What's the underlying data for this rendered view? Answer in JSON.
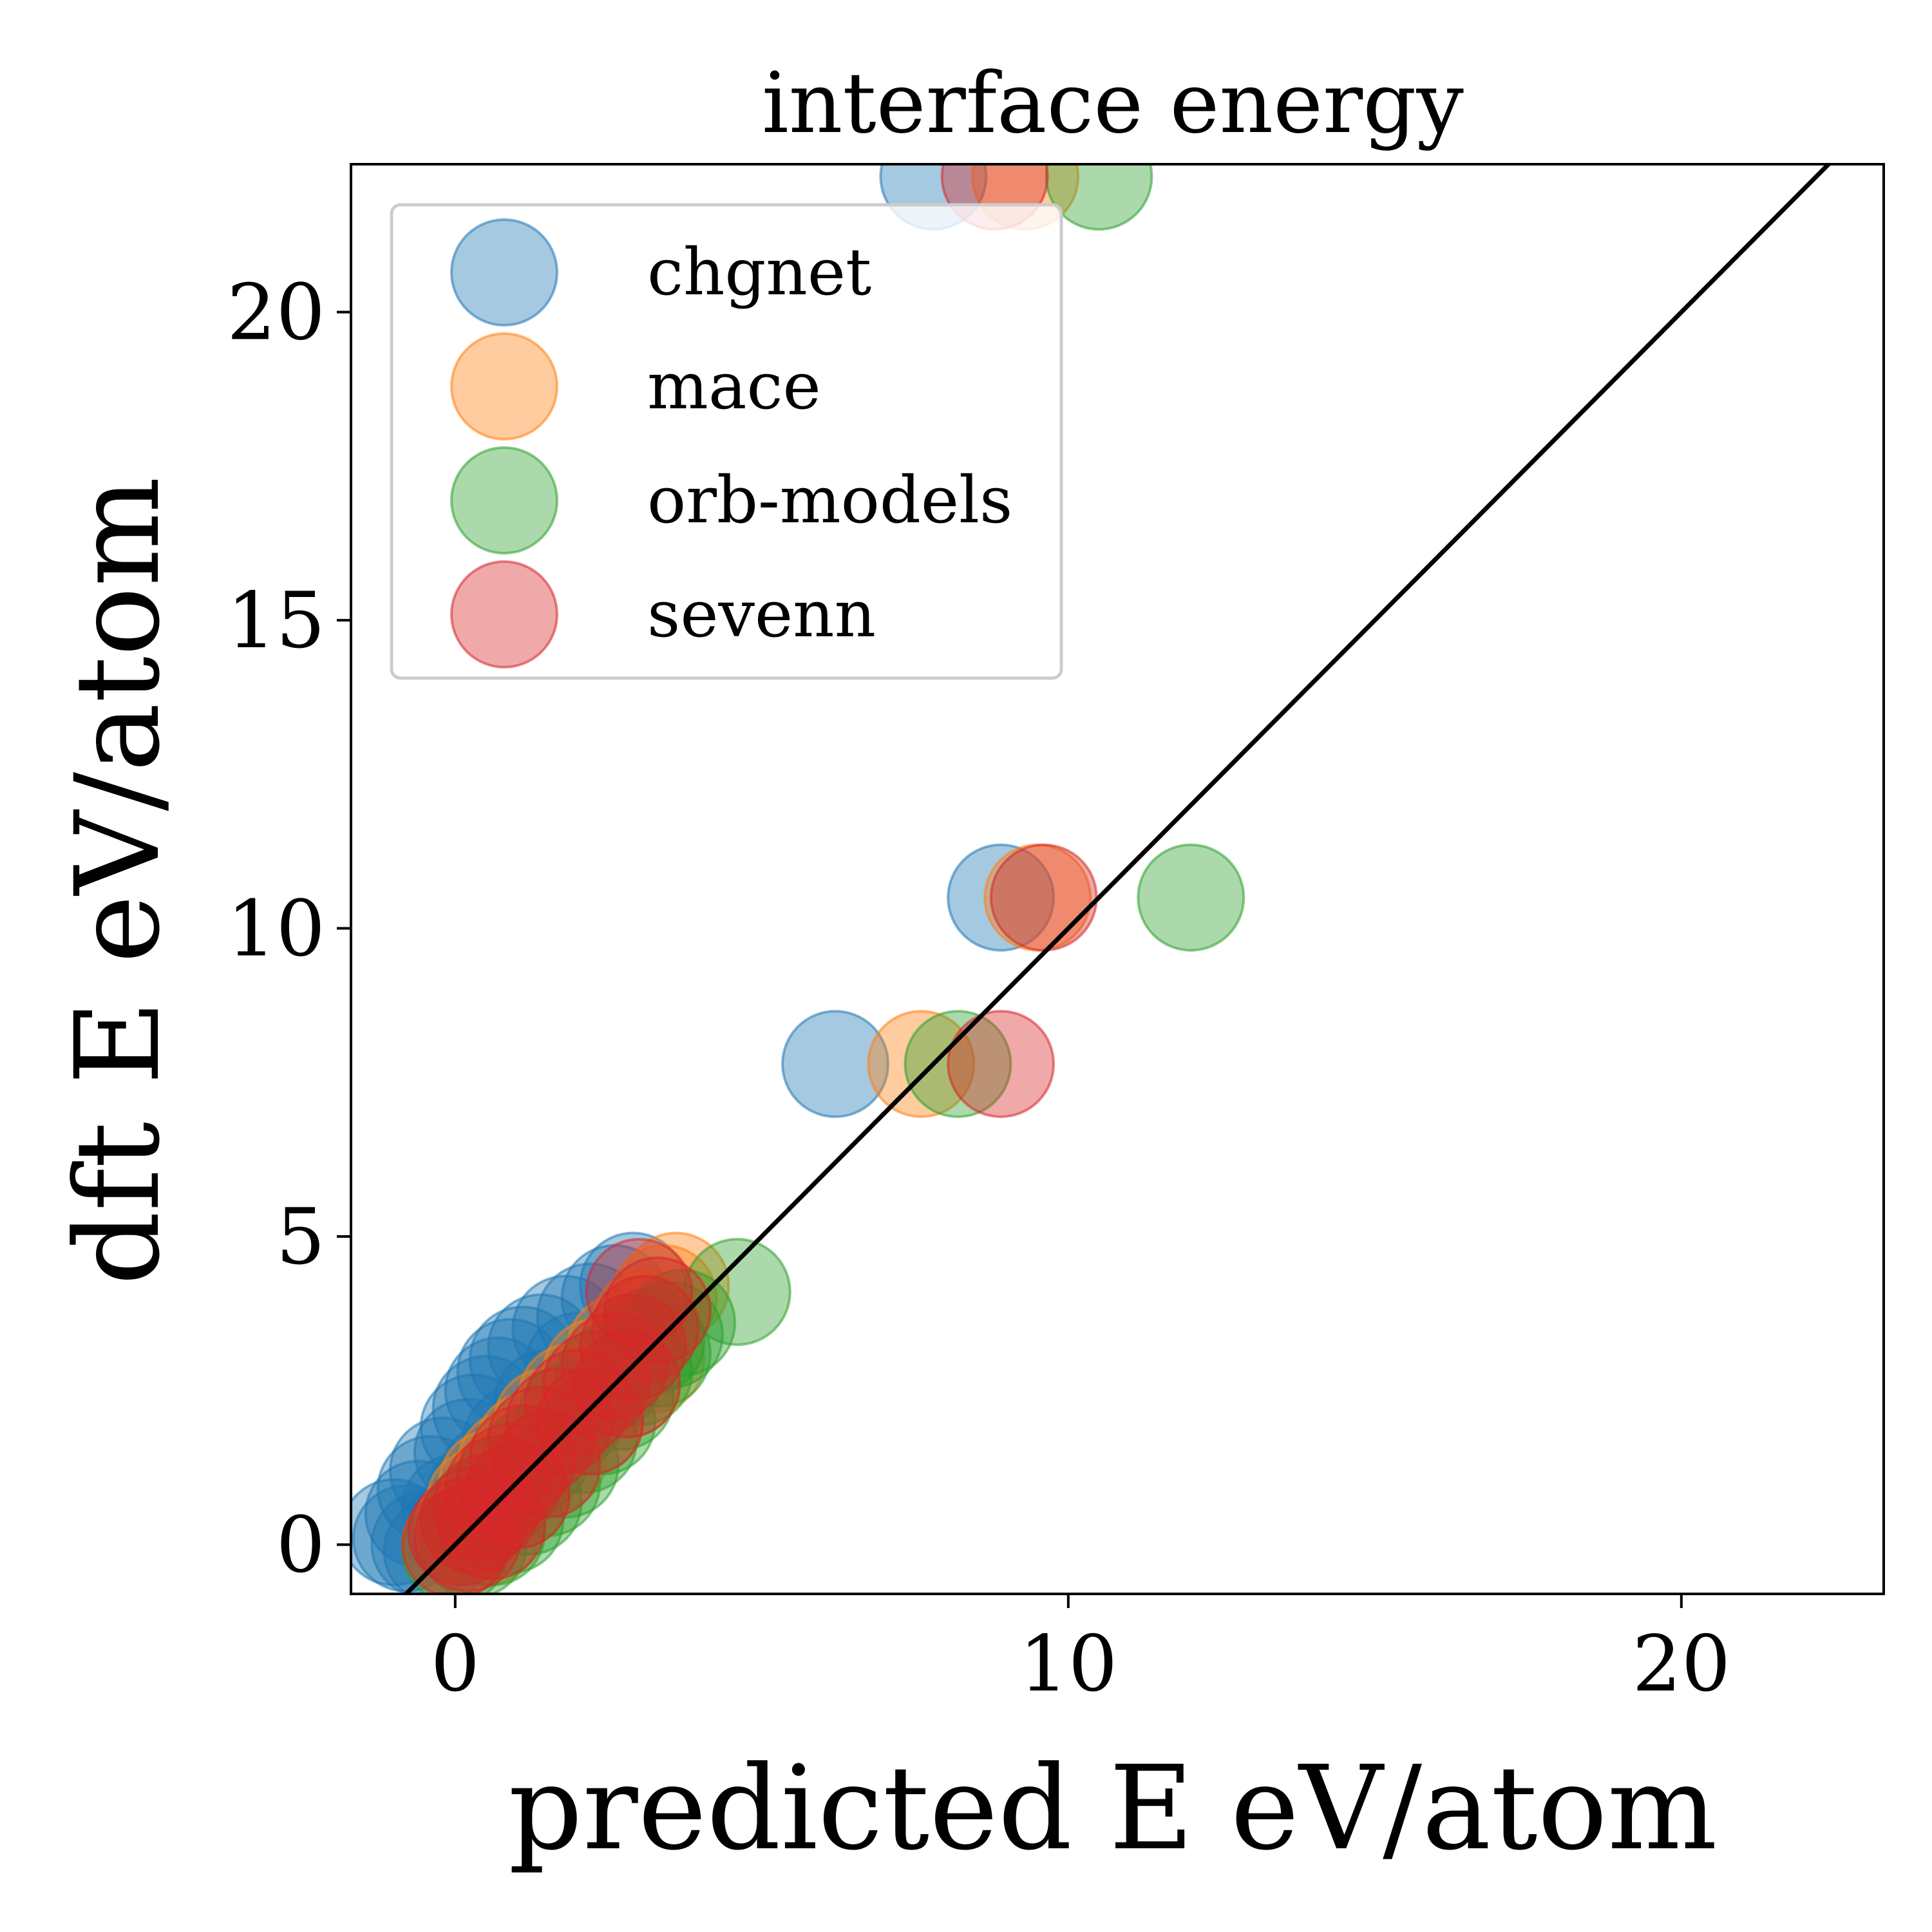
{
  "chart_data": {
    "type": "scatter",
    "title": "interface energy",
    "xlabel": "predicted E eV/atom",
    "ylabel": "dft E eV/atom",
    "xlim": [
      -1.7,
      23.3
    ],
    "ylim": [
      -0.8,
      22.4
    ],
    "xticks": [
      0,
      10,
      20
    ],
    "yticks": [
      0,
      5,
      10,
      15,
      20
    ],
    "grid": false,
    "legend_position": "top-left",
    "reference_line": "y = x",
    "marker_alpha": 0.4,
    "series": [
      {
        "name": "chgnet",
        "color": "#1f77b4",
        "points": [
          [
            -1.0,
            0.2
          ],
          [
            -0.8,
            0.1
          ],
          [
            -0.5,
            0.0
          ],
          [
            -0.3,
            -0.1
          ],
          [
            -0.6,
            0.5
          ],
          [
            -0.4,
            0.9
          ],
          [
            -0.2,
            1.2
          ],
          [
            0.0,
            0.6
          ],
          [
            0.2,
            1.5
          ],
          [
            0.3,
            1.9
          ],
          [
            0.5,
            2.2
          ],
          [
            0.7,
            2.5
          ],
          [
            0.9,
            2.8
          ],
          [
            1.1,
            3.0
          ],
          [
            1.4,
            3.2
          ],
          [
            1.8,
            3.5
          ],
          [
            2.2,
            3.7
          ],
          [
            2.6,
            4.0
          ],
          [
            2.9,
            4.2
          ],
          [
            0.4,
            0.8
          ],
          [
            0.1,
            0.3
          ],
          [
            0.6,
            1.1
          ],
          [
            1.0,
            1.7
          ],
          [
            1.5,
            2.3
          ],
          [
            2.0,
            2.9
          ],
          [
            6.2,
            7.8
          ],
          [
            8.9,
            10.5
          ],
          [
            7.8,
            22.2
          ]
        ]
      },
      {
        "name": "mace",
        "color": "#ff7f0e",
        "points": [
          [
            0.0,
            0.0
          ],
          [
            0.2,
            0.3
          ],
          [
            0.4,
            0.7
          ],
          [
            0.6,
            1.0
          ],
          [
            0.9,
            1.3
          ],
          [
            1.2,
            1.6
          ],
          [
            1.5,
            2.0
          ],
          [
            1.9,
            2.4
          ],
          [
            2.3,
            2.8
          ],
          [
            2.7,
            3.2
          ],
          [
            3.1,
            3.6
          ],
          [
            3.4,
            4.0
          ],
          [
            3.6,
            4.2
          ],
          [
            0.5,
            0.2
          ],
          [
            1.0,
            0.8
          ],
          [
            1.6,
            1.4
          ],
          [
            2.2,
            2.0
          ],
          [
            2.8,
            2.6
          ],
          [
            3.2,
            3.0
          ],
          [
            7.6,
            7.8
          ],
          [
            9.5,
            10.5
          ],
          [
            9.3,
            22.2
          ]
        ]
      },
      {
        "name": "orb-models",
        "color": "#2ca02c",
        "points": [
          [
            0.0,
            -0.1
          ],
          [
            0.3,
            0.0
          ],
          [
            0.6,
            0.2
          ],
          [
            0.9,
            0.4
          ],
          [
            1.2,
            0.7
          ],
          [
            1.5,
            1.0
          ],
          [
            1.8,
            1.3
          ],
          [
            2.1,
            1.7
          ],
          [
            2.4,
            2.0
          ],
          [
            2.7,
            2.4
          ],
          [
            3.0,
            2.8
          ],
          [
            3.3,
            3.1
          ],
          [
            3.5,
            3.4
          ],
          [
            3.7,
            3.6
          ],
          [
            0.4,
            0.5
          ],
          [
            0.8,
            0.9
          ],
          [
            1.3,
            1.4
          ],
          [
            1.9,
            2.1
          ],
          [
            2.5,
            2.7
          ],
          [
            3.2,
            3.3
          ],
          [
            4.6,
            4.1
          ],
          [
            8.2,
            7.8
          ],
          [
            12.0,
            10.5
          ],
          [
            10.5,
            22.2
          ]
        ]
      },
      {
        "name": "sevenn",
        "color": "#d62728",
        "points": [
          [
            0.0,
            0.0
          ],
          [
            0.1,
            0.2
          ],
          [
            0.3,
            0.4
          ],
          [
            0.5,
            0.6
          ],
          [
            0.7,
            0.9
          ],
          [
            0.9,
            1.1
          ],
          [
            1.1,
            1.4
          ],
          [
            1.4,
            1.7
          ],
          [
            1.7,
            2.0
          ],
          [
            2.0,
            2.3
          ],
          [
            2.3,
            2.6
          ],
          [
            2.6,
            2.9
          ],
          [
            2.9,
            3.2
          ],
          [
            3.1,
            3.5
          ],
          [
            3.3,
            3.8
          ],
          [
            0.2,
            0.1
          ],
          [
            0.6,
            0.3
          ],
          [
            1.0,
            0.8
          ],
          [
            1.5,
            1.3
          ],
          [
            2.2,
            2.0
          ],
          [
            2.8,
            2.6
          ],
          [
            3.0,
            4.1
          ],
          [
            8.9,
            7.8
          ],
          [
            9.6,
            10.5
          ],
          [
            8.8,
            22.2
          ]
        ]
      }
    ]
  }
}
